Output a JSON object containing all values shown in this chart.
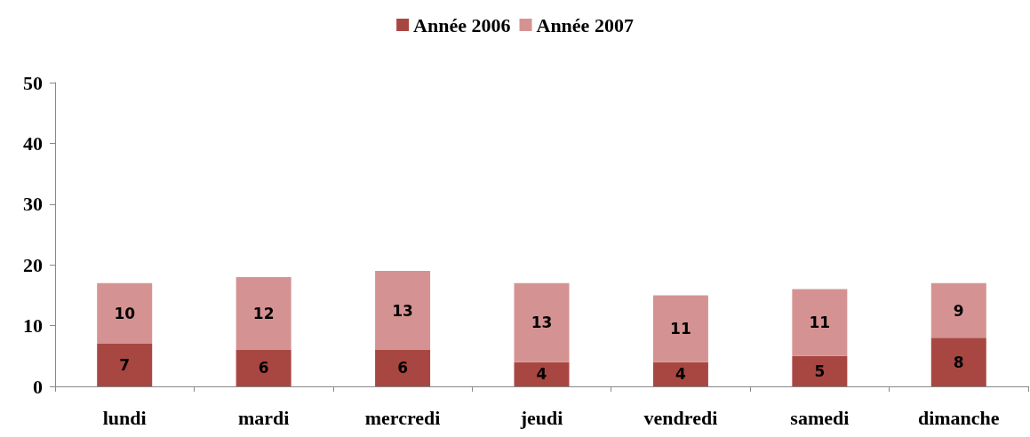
{
  "chart_data": {
    "type": "bar",
    "stacked": true,
    "categories": [
      "lundi",
      "mardi",
      "mercredi",
      "jeudi",
      "vendredi",
      "samedi",
      "dimanche"
    ],
    "series": [
      {
        "name": "Année 2006",
        "color": "#a84742",
        "values": [
          7,
          6,
          6,
          4,
          4,
          5,
          8
        ]
      },
      {
        "name": "Année 2007",
        "color": "#d49392",
        "values": [
          10,
          12,
          13,
          13,
          11,
          11,
          9
        ]
      }
    ],
    "ylim": [
      0,
      50
    ],
    "yticks": [
      0,
      10,
      20,
      30,
      40,
      50
    ],
    "grid": false,
    "legend": "top",
    "data_labels": true
  }
}
